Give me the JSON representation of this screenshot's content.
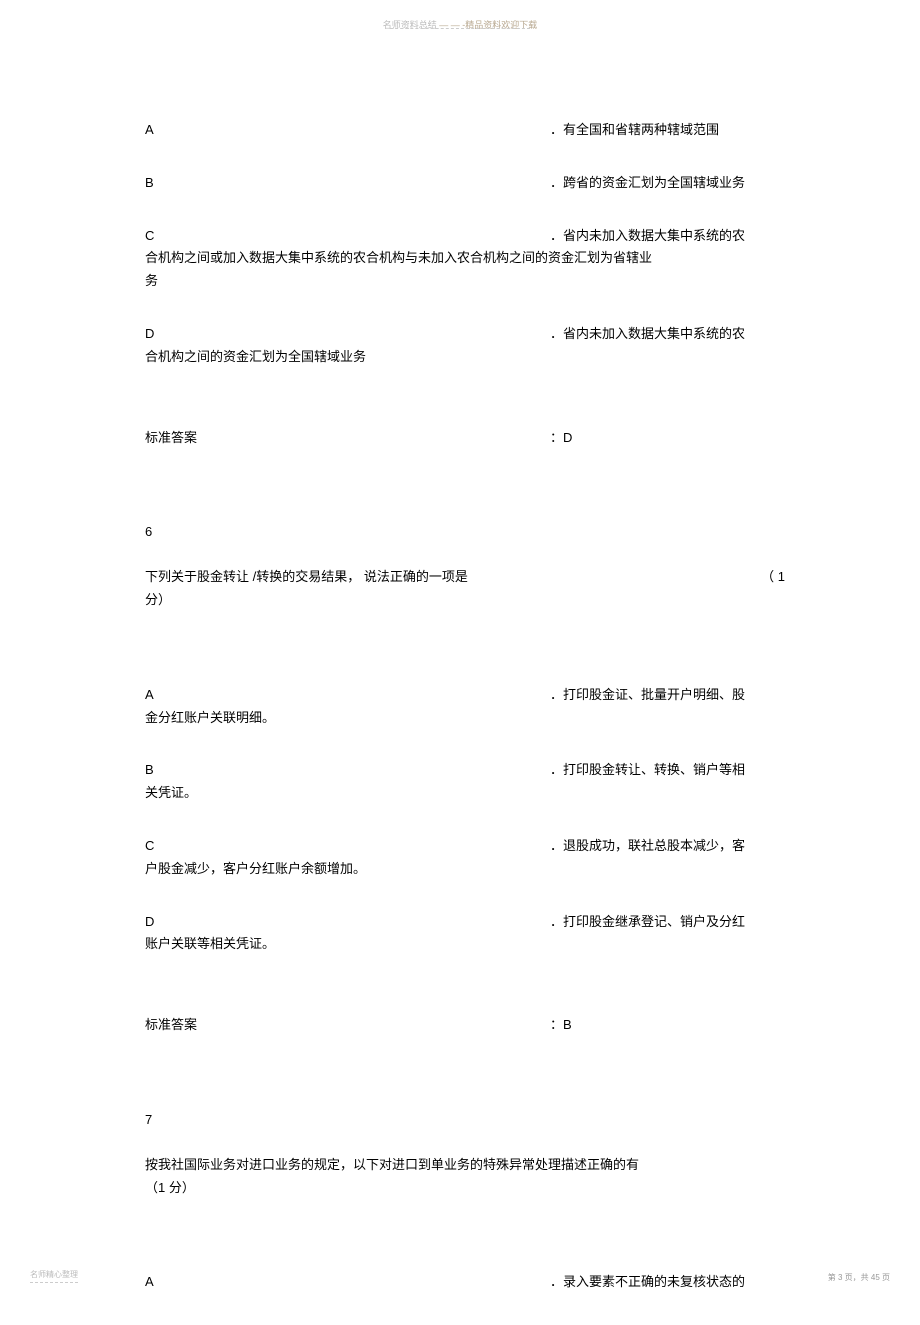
{
  "header": {
    "left": "名师资料总结",
    "right": "— — -精品资料欢迎下载"
  },
  "q5": {
    "options": {
      "A": {
        "letter": "A",
        "prefix": "．",
        "text": "有全国和省辖两种辖域范围"
      },
      "B": {
        "letter": "B",
        "prefix": "．",
        "text": "跨省的资金汇划为全国辖域业务"
      },
      "C": {
        "letter": "C",
        "prefix": "．",
        "text": "省内未加入数据大集中系统的农",
        "cont1": "合机构之间或加入数据大集中系统的农合机构与未加入农合机构之间的资金汇划为省辖业",
        "cont2": "务"
      },
      "D": {
        "letter": "D",
        "prefix": "．",
        "text": "省内未加入数据大集中系统的农",
        "cont1": "合机构之间的资金汇划为全国辖域业务"
      }
    },
    "answer": {
      "label": "标准答案",
      "colon": "：",
      "value": "D"
    }
  },
  "q6": {
    "num": "6",
    "question": {
      "part1": "下列关于股金转让",
      "part2": " /转换的交易结果，",
      "part3": "  说法正确的一项是",
      "score": "（ 1",
      "cont": "分）"
    },
    "options": {
      "A": {
        "letter": "A",
        "prefix": "．",
        "text": "打印股金证、批量开户明细、股",
        "cont1": "金分红账户关联明细。"
      },
      "B": {
        "letter": "B",
        "prefix": "．",
        "text": "打印股金转让、转换、销户等相",
        "cont1": "关凭证。"
      },
      "C": {
        "letter": "C",
        "prefix": "．",
        "text": "退股成功，联社总股本减少，客",
        "cont1": "户股金减少，客户分红账户余额增加。"
      },
      "D": {
        "letter": "D",
        "prefix": "．",
        "text": "打印股金继承登记、销户及分红",
        "cont1": "账户关联等相关凭证。"
      }
    },
    "answer": {
      "label": "标准答案",
      "colon": "：",
      "value": "B"
    }
  },
  "q7": {
    "num": "7",
    "question": {
      "line1": "按我社国际业务对进口业务的规定，以下对进口到单业务的特殊异常处理描述正确的有",
      "line2": "（1 分）"
    },
    "options": {
      "A": {
        "letter": "A",
        "prefix": "．",
        "text": "录入要素不正确的未复核状态的"
      }
    }
  },
  "footer": {
    "left": "名师精心整理",
    "right": "第 3 页，共 45 页"
  }
}
